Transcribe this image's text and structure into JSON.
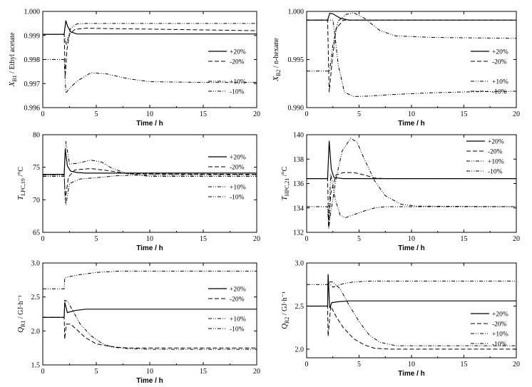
{
  "figure": {
    "legend_labels": [
      "+20%",
      "-20%",
      "+10%",
      "-10%"
    ]
  },
  "chart_data": [
    {
      "type": "line",
      "id": "xb1",
      "ylabel": "X_B1 / Ethyl acetate",
      "ylabel_main": "X",
      "ylabel_sub": "B1",
      "ylabel_rest": " / Ethyl acetate",
      "xlabel": "Time / h",
      "xlim": [
        0,
        20
      ],
      "ylim": [
        0.996,
        1.0
      ],
      "xticks": [
        0,
        5,
        10,
        15,
        20
      ],
      "yticks": [
        0.996,
        0.997,
        0.998,
        0.999,
        1.0
      ],
      "ytick_labels": [
        "0.996",
        "0.997",
        "0.998",
        "0.999",
        "1.000"
      ],
      "legend": "right-middle",
      "series": [
        {
          "name": "+20%",
          "style": "solid",
          "x": [
            0,
            2,
            2.15,
            2.3,
            2.6,
            3.2,
            20
          ],
          "y": [
            0.99905,
            0.99905,
            0.99962,
            0.9994,
            0.99915,
            0.99906,
            0.99906
          ]
        },
        {
          "name": "-20%",
          "style": "dashed",
          "x": [
            0,
            2,
            2.1,
            2.25,
            2.5,
            3,
            4,
            20
          ],
          "y": [
            0.99905,
            0.99905,
            0.9973,
            0.9984,
            0.99905,
            0.99925,
            0.9993,
            0.9992
          ]
        },
        {
          "name": "+10%",
          "style": "dashdotdot",
          "x": [
            0,
            2,
            2.2,
            2.6,
            3.2,
            4,
            6,
            20
          ],
          "y": [
            0.99905,
            0.99905,
            0.9986,
            0.9993,
            0.99948,
            0.9995,
            0.9995,
            0.9995
          ]
        },
        {
          "name": "-10%",
          "style": "dashdotdot",
          "x": [
            0,
            2,
            2.15,
            2.5,
            3.2,
            4.5,
            6,
            8,
            10,
            15,
            20
          ],
          "y": [
            0.998,
            0.998,
            0.9966,
            0.9968,
            0.9971,
            0.99745,
            0.9974,
            0.9972,
            0.99708,
            0.99705,
            0.99705
          ]
        }
      ]
    },
    {
      "type": "line",
      "id": "xb2",
      "ylabel": "X_B2 / n-hexane",
      "ylabel_main": "X",
      "ylabel_sub": "B2",
      "ylabel_rest": " / n-hexane",
      "xlabel": "Time / h",
      "xlim": [
        0,
        20
      ],
      "ylim": [
        0.99,
        1.0
      ],
      "xticks": [
        0,
        5,
        10,
        15,
        20
      ],
      "yticks": [
        0.99,
        0.995,
        1.0
      ],
      "ytick_labels": [
        "0.990",
        "0.995",
        "1.000"
      ],
      "legend": "right-middle",
      "series": [
        {
          "name": "+20%",
          "style": "solid",
          "x": [
            0,
            2,
            2.2,
            2.5,
            3.2,
            4,
            20
          ],
          "y": [
            0.9991,
            0.9991,
            0.9998,
            0.99975,
            0.9993,
            0.9991,
            0.9991
          ]
        },
        {
          "name": "-20%",
          "style": "dashed",
          "x": [
            0,
            2,
            2.15,
            2.4,
            2.8,
            3.5,
            4.5,
            20
          ],
          "y": [
            0.9991,
            0.9991,
            0.9916,
            0.9945,
            0.9982,
            0.9991,
            0.9991,
            0.9991
          ]
        },
        {
          "name": "+10%",
          "style": "dashdotdot",
          "x": [
            0,
            2,
            2.2,
            2.5,
            3,
            3.8,
            4.5,
            5.5,
            7,
            8.5,
            12,
            20
          ],
          "y": [
            0.9938,
            0.9938,
            0.9938,
            0.9965,
            0.999,
            0.9997,
            0.99985,
            0.9993,
            0.998,
            0.99745,
            0.9973,
            0.9972
          ]
        },
        {
          "name": "-10%",
          "style": "dashdotdot",
          "x": [
            0,
            2.5,
            2.7,
            3,
            3.6,
            4.5,
            6,
            8,
            12,
            16,
            20
          ],
          "y": [
            0.9991,
            0.9991,
            0.9975,
            0.9945,
            0.9916,
            0.99115,
            0.9912,
            0.99135,
            0.99155,
            0.99165,
            0.9917
          ]
        }
      ]
    },
    {
      "type": "line",
      "id": "tlpc",
      "ylabel": "T_LPC,19 / °C",
      "ylabel_main": "T",
      "ylabel_sub": "LPC,19",
      "ylabel_rest": " /°C",
      "xlabel": "Time / h",
      "xlim": [
        0,
        20
      ],
      "ylim": [
        65,
        80
      ],
      "xticks": [
        0,
        5,
        10,
        15,
        20
      ],
      "yticks": [
        65,
        70,
        75,
        80
      ],
      "ytick_labels": [
        "65",
        "70",
        "75",
        "80"
      ],
      "legend": "right-middle",
      "series": [
        {
          "name": "+20%",
          "style": "solid",
          "x": [
            0,
            2,
            2.1,
            2.3,
            2.6,
            3.2,
            4,
            20
          ],
          "y": [
            73.9,
            73.9,
            77.8,
            75.2,
            74.4,
            74.2,
            74.1,
            74.1
          ]
        },
        {
          "name": "-20%",
          "style": "dashed",
          "x": [
            0,
            2,
            2.1,
            2.4,
            3,
            4.5,
            6,
            8,
            20
          ],
          "y": [
            73.9,
            73.9,
            70.0,
            73.5,
            74.6,
            74.8,
            74.5,
            74.0,
            73.9
          ]
        },
        {
          "name": "+10%",
          "style": "dashdotdot",
          "x": [
            0,
            2,
            2.15,
            2.5,
            3.2,
            4.5,
            5.5,
            6.5,
            8,
            10,
            20
          ],
          "y": [
            73.6,
            73.6,
            79.0,
            75.5,
            75.6,
            76.1,
            75.8,
            74.8,
            74.0,
            73.6,
            73.6
          ]
        },
        {
          "name": "-10%",
          "style": "dashdotdot",
          "x": [
            0,
            2,
            2.15,
            2.5,
            3.5,
            5,
            7,
            9,
            20
          ],
          "y": [
            73.8,
            73.8,
            69.2,
            72.5,
            73.2,
            73.4,
            73.7,
            73.8,
            73.8
          ]
        }
      ]
    },
    {
      "type": "line",
      "id": "thpc",
      "ylabel": "T_HPC,21 / °C",
      "ylabel_main": "T",
      "ylabel_sub": "HPC,21",
      "ylabel_rest": " /°C",
      "xlabel": "Time / h",
      "xlim": [
        0,
        20
      ],
      "ylim": [
        132,
        140
      ],
      "xticks": [
        0,
        5,
        10,
        15,
        20
      ],
      "yticks": [
        132,
        134,
        136,
        138,
        140
      ],
      "ytick_labels": [
        "132",
        "134",
        "136",
        "138",
        "140"
      ],
      "legend": "top-right",
      "series": [
        {
          "name": "+20%",
          "style": "solid",
          "x": [
            0,
            2,
            2.15,
            2.35,
            2.6,
            3,
            3.5,
            20
          ],
          "y": [
            136.4,
            136.4,
            139.5,
            137.2,
            136.5,
            136.45,
            136.4,
            136.4
          ]
        },
        {
          "name": "-20%",
          "style": "dashed",
          "x": [
            0,
            2,
            2.1,
            2.3,
            2.8,
            3.5,
            4.5,
            5.5,
            6.5,
            7.5,
            20
          ],
          "y": [
            136.4,
            136.4,
            132.4,
            135.2,
            136.7,
            136.9,
            136.9,
            136.7,
            136.45,
            136.4,
            136.4
          ]
        },
        {
          "name": "+10%",
          "style": "dashdotdot",
          "x": [
            0,
            2,
            2.1,
            2.3,
            2.8,
            3.4,
            4.2,
            4.8,
            5.5,
            6.5,
            7.5,
            9,
            10.5,
            20
          ],
          "y": [
            134.1,
            134.1,
            132.3,
            133.6,
            136.4,
            138.7,
            139.7,
            139.4,
            138.0,
            136.2,
            135.0,
            134.3,
            134.15,
            134.1
          ]
        },
        {
          "name": "-10%",
          "style": "dashdotdot",
          "x": [
            0,
            2,
            2.1,
            2.3,
            2.7,
            3.2,
            3.7,
            4.5,
            5.5,
            6.5,
            7.5,
            20
          ],
          "y": [
            134.1,
            134.1,
            132.6,
            136.8,
            134.8,
            133.4,
            133.2,
            133.45,
            133.75,
            134.0,
            134.1,
            134.1
          ]
        }
      ]
    },
    {
      "type": "line",
      "id": "qr1",
      "ylabel": "Q_R1 / GJ·h⁻¹",
      "ylabel_main": "Q",
      "ylabel_sub": "R1",
      "ylabel_rest": " / GJ·h⁻¹",
      "xlabel": "Time / h",
      "xlim": [
        0,
        20
      ],
      "ylim": [
        1.5,
        3.0
      ],
      "xticks": [
        0,
        5,
        10,
        15,
        20
      ],
      "yticks": [
        1.5,
        2.0,
        2.5,
        3.0
      ],
      "ytick_labels": [
        "1.5",
        "2.0",
        "2.5",
        "3.0"
      ],
      "legend": "right-middle",
      "series": [
        {
          "name": "+20%",
          "style": "solid",
          "x": [
            0,
            2,
            2.05,
            2.3,
            3,
            4,
            5,
            20
          ],
          "y": [
            2.2,
            2.2,
            2.42,
            2.27,
            2.3,
            2.32,
            2.32,
            2.32
          ]
        },
        {
          "name": "-20%",
          "style": "dashed",
          "x": [
            0,
            2,
            2.05,
            2.2,
            2.6,
            3.3,
            4,
            5,
            6,
            7,
            8,
            20
          ],
          "y": [
            2.2,
            2.2,
            1.88,
            2.1,
            2.1,
            2.0,
            1.9,
            1.81,
            1.78,
            1.76,
            1.75,
            1.75
          ]
        },
        {
          "name": "+10%",
          "style": "dashdotdot",
          "x": [
            0,
            2,
            2.05,
            2.5,
            3.5,
            5,
            7,
            9,
            20
          ],
          "y": [
            2.62,
            2.62,
            2.78,
            2.8,
            2.83,
            2.86,
            2.88,
            2.88,
            2.88
          ]
        },
        {
          "name": "-10%",
          "style": "dashdotdot",
          "x": [
            0,
            2,
            2.05,
            2.3,
            2.8,
            3.5,
            4.5,
            5.5,
            6.5,
            8,
            10,
            20
          ],
          "y": [
            2.2,
            2.2,
            2.45,
            2.44,
            2.3,
            2.1,
            1.93,
            1.82,
            1.76,
            1.74,
            1.73,
            1.73
          ]
        }
      ]
    },
    {
      "type": "line",
      "id": "qr2",
      "ylabel": "Q_R2 / GJ·h⁻¹",
      "ylabel_main": "Q",
      "ylabel_sub": "R2",
      "ylabel_rest": " / GJ·h⁻¹",
      "xlabel": "Time / h",
      "xlim": [
        0,
        20
      ],
      "ylim": [
        1.9,
        3.0
      ],
      "xticks": [
        0,
        5,
        10,
        15,
        20
      ],
      "yticks": [
        2.0,
        2.5,
        3.0
      ],
      "ytick_labels": [
        "2.0",
        "2.5",
        "3.0"
      ],
      "legend": "right-middle",
      "series": [
        {
          "name": "+20%",
          "style": "solid",
          "x": [
            0,
            2,
            2.05,
            2.2,
            2.4,
            3,
            4,
            20
          ],
          "y": [
            2.5,
            2.5,
            2.87,
            2.48,
            2.54,
            2.55,
            2.56,
            2.56
          ]
        },
        {
          "name": "-20%",
          "style": "dashed",
          "x": [
            0,
            2,
            2.05,
            2.3,
            2.8,
            3.5,
            4.5,
            5.5,
            6.5,
            8,
            10,
            20
          ],
          "y": [
            2.5,
            2.5,
            2.15,
            2.5,
            2.38,
            2.25,
            2.12,
            2.05,
            2.01,
            2.0,
            2.0,
            2.0
          ]
        },
        {
          "name": "+10%",
          "style": "dashdotdot",
          "x": [
            0,
            2,
            2.1,
            2.5,
            3.5,
            4.5,
            6,
            8,
            20
          ],
          "y": [
            2.75,
            2.75,
            2.77,
            2.72,
            2.76,
            2.78,
            2.79,
            2.79,
            2.79
          ]
        },
        {
          "name": "-10%",
          "style": "dashdotdot",
          "x": [
            0,
            2,
            2.05,
            2.5,
            3.2,
            4,
            5,
            6,
            7,
            8.5,
            10,
            20
          ],
          "y": [
            2.5,
            2.5,
            2.78,
            2.78,
            2.7,
            2.52,
            2.32,
            2.16,
            2.08,
            2.04,
            2.04,
            2.04
          ]
        }
      ]
    }
  ]
}
